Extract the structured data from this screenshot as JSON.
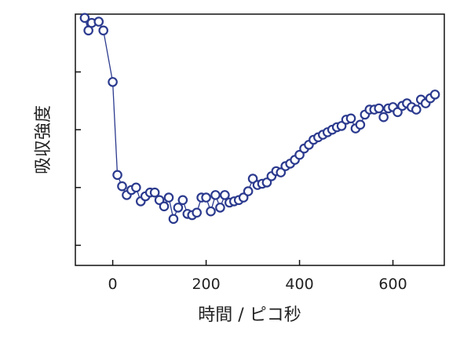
{
  "chart_data": {
    "type": "scatter",
    "title": "",
    "xlabel": "時間 / ピコ秒",
    "ylabel": "吸収強度",
    "xlim": [
      -80,
      710
    ],
    "ylim": [
      0,
      1
    ],
    "x_ticks": [
      0,
      200,
      400,
      600
    ],
    "x_tick_labels": [
      "0",
      "200",
      "400",
      "600"
    ],
    "y_ticks_unlabeled": [
      0.08,
      0.31,
      0.54,
      0.77
    ],
    "y_tick_labels": [],
    "grid": false,
    "legend": "none",
    "marker": "open-circle",
    "connected": true,
    "color": "#2b3a8e",
    "series": [
      {
        "x": [
          -60,
          -52,
          -45,
          -30,
          -20,
          0,
          10,
          20,
          30,
          40,
          50,
          60,
          70,
          80,
          90,
          100,
          110,
          120,
          130,
          140,
          150,
          160,
          170,
          180,
          190,
          200,
          210,
          220,
          230,
          240,
          250,
          260,
          270,
          280,
          290,
          300,
          310,
          320,
          330,
          340,
          350,
          360,
          370,
          380,
          390,
          400,
          410,
          420,
          430,
          440,
          450,
          460,
          470,
          480,
          490,
          500,
          510,
          520,
          530,
          540,
          550,
          560,
          570,
          580,
          590,
          600,
          610,
          620,
          630,
          640,
          650,
          660,
          670,
          680,
          690
        ],
        "y": [
          0.985,
          0.935,
          0.965,
          0.97,
          0.935,
          0.73,
          0.36,
          0.315,
          0.28,
          0.3,
          0.31,
          0.255,
          0.275,
          0.29,
          0.29,
          0.26,
          0.235,
          0.27,
          0.185,
          0.23,
          0.26,
          0.205,
          0.2,
          0.21,
          0.27,
          0.27,
          0.215,
          0.28,
          0.23,
          0.28,
          0.25,
          0.255,
          0.26,
          0.27,
          0.295,
          0.345,
          0.32,
          0.325,
          0.33,
          0.355,
          0.375,
          0.37,
          0.395,
          0.405,
          0.42,
          0.44,
          0.465,
          0.48,
          0.5,
          0.51,
          0.52,
          0.53,
          0.54,
          0.55,
          0.555,
          0.58,
          0.585,
          0.545,
          0.56,
          0.6,
          0.62,
          0.62,
          0.625,
          0.59,
          0.625,
          0.63,
          0.61,
          0.635,
          0.645,
          0.63,
          0.62,
          0.66,
          0.645,
          0.665,
          0.68
        ]
      }
    ]
  }
}
